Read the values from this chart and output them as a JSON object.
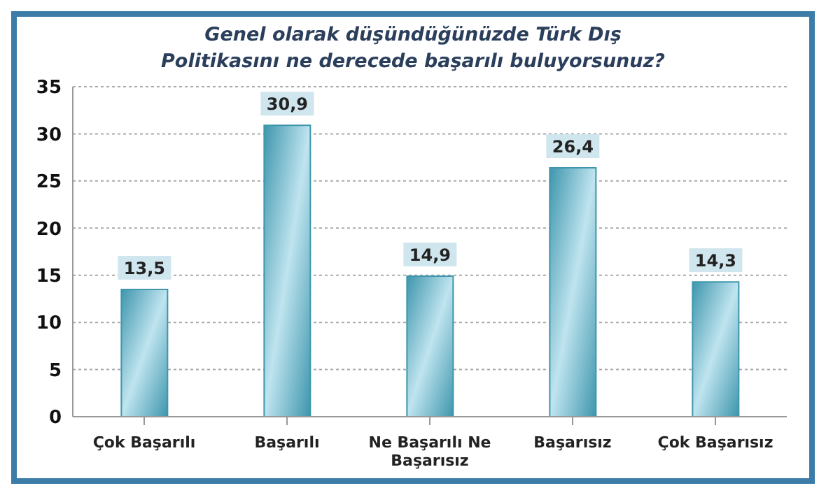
{
  "chart_data": {
    "type": "bar",
    "title": "Genel olarak düşündüğünüzde Türk Dış Politikasını ne derecede başarılı buluyorsunuz?",
    "categories": [
      "Çok Başarılı",
      "Başarılı",
      "Ne Başarılı Ne Başarısız",
      "Başarısız",
      "Çok Başarısız"
    ],
    "values": [
      13.5,
      30.9,
      14.9,
      26.4,
      14.3
    ],
    "value_labels": [
      "13,5",
      "30,9",
      "14,9",
      "26,4",
      "14,3"
    ],
    "color": "#3e96ad",
    "ylim": [
      0,
      35
    ],
    "yticks": [
      0,
      5,
      10,
      15,
      20,
      25,
      30,
      35
    ],
    "grid": "y"
  }
}
